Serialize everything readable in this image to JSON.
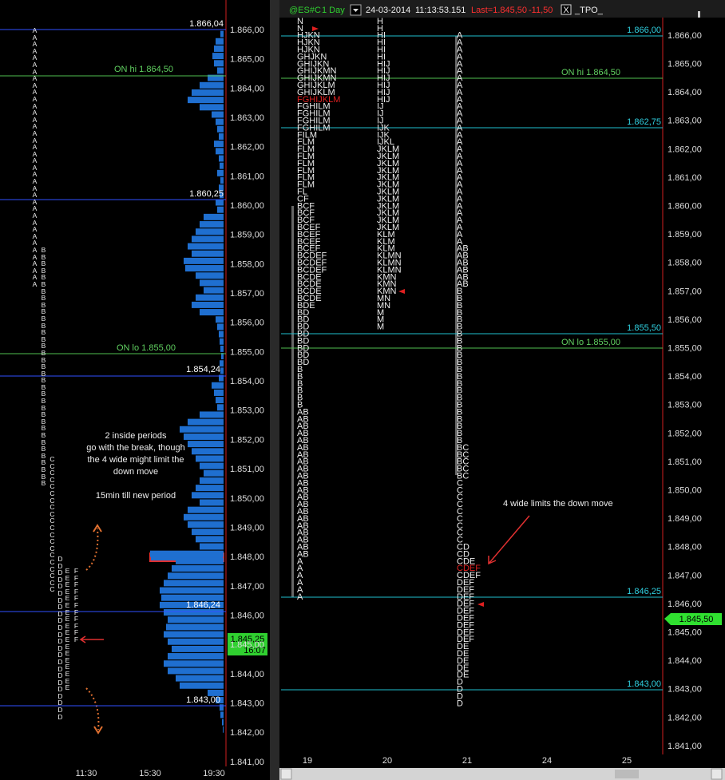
{
  "left_panel": {
    "price_labels": [
      "1.866,00",
      "1.865,00",
      "1.864,00",
      "1.863,00",
      "1.862,00",
      "1.861,00",
      "1.860,00",
      "1.859,00",
      "1.858,00",
      "1.857,00",
      "1.856,00",
      "1.855,00",
      "1.854,00",
      "1.853,00",
      "1.852,00",
      "1.851,00",
      "1.850,00",
      "1.849,00",
      "1.848,00",
      "1.847,00",
      "1.846,00",
      "1.845,00",
      "1.844,00",
      "1.843,00",
      "1.842,00",
      "1.841,00"
    ],
    "time_labels": [
      "11:30",
      "15:30",
      "19:30"
    ],
    "levels": [
      "1.866,04",
      "ON hi 1.864,50",
      "1.860,25",
      "ON lo 1.855,00",
      "1.854,24",
      "1.846,24",
      "1.843,00"
    ],
    "tpo_columns": [
      "AAAAAAAAAAAAAAAAAAAAAAAAAAAAAAAAAAAAAA",
      "BBBBBBBBBBBBBBBBBBBBBBBBBBBBBBBBBBB",
      "CCCCCCCCCCCCCCCCCCCC",
      "DDDDDDDDDDDDDDDDDDDDDDDD",
      "EEEEEEEEEEEEEEEEEE",
      "FFFFFFFFFFF"
    ],
    "volume_profile": [
      4,
      10,
      12,
      14,
      12,
      8,
      20,
      30,
      40,
      45,
      30,
      15,
      10,
      8,
      6,
      12,
      10,
      6,
      5,
      8,
      4,
      6,
      5,
      10,
      8,
      25,
      30,
      35,
      40,
      45,
      40,
      50,
      48,
      35,
      30,
      25,
      35,
      40,
      30,
      10,
      8,
      6,
      5,
      4,
      3,
      5,
      4,
      6,
      15,
      12,
      10,
      8,
      30,
      45,
      55,
      50,
      45,
      40,
      35,
      30,
      25,
      30,
      35,
      40,
      30,
      45,
      50,
      45,
      40,
      35,
      30,
      92,
      60,
      65,
      70,
      75,
      80,
      78,
      80,
      75,
      70,
      72,
      75,
      70,
      65,
      70,
      75,
      70,
      60,
      55,
      20,
      10,
      5,
      4,
      2,
      1
    ],
    "last_price": "1.845,25",
    "countdown": "16:07",
    "annotations": [
      "2 inside periods",
      "go with the break, though",
      "the 4 wide might limit the",
      "down move",
      "15min till new period"
    ]
  },
  "right_panel": {
    "header": {
      "symbol": "@ES#C",
      "period": "1 Day",
      "date": "24-03-2014",
      "time": "11:13:53.151",
      "last": "Last=1.845,50",
      "change": "-11,50",
      "checkbox": "X",
      "study": "_TPO_"
    },
    "price_labels": [
      "1.866,00",
      "1.865,00",
      "1.864,00",
      "1.863,00",
      "1.862,00",
      "1.861,00",
      "1.860,00",
      "1.859,00",
      "1.858,00",
      "1.857,00",
      "1.856,00",
      "1.855,00",
      "1.854,00",
      "1.853,00",
      "1.852,00",
      "1.851,00",
      "1.850,00",
      "1.849,00",
      "1.848,00",
      "1.847,00",
      "1.846,00",
      "1.845,00",
      "1.844,00",
      "1.843,00",
      "1.842,00",
      "1.841,00"
    ],
    "day_labels": [
      "19",
      "20",
      "21",
      "24",
      "25"
    ],
    "levels": [
      "1.866,00",
      "ON hi 1.864,50",
      "1.862,75",
      "1.855,50",
      "ON lo 1.855,00",
      "1.846,25",
      "1.843,00"
    ],
    "tpo_columns": [
      [
        "N",
        "N",
        "HJKN",
        "HJKN",
        "HJKN",
        "GHJKN",
        "GHIJKN",
        "GHIJKMN",
        "GHIJKMN",
        "GHIJKLM",
        "GHIJKLM",
        {
          "text": "FGHIJKLM",
          "color": "#e02020"
        },
        "FGHILM",
        "FGHILM",
        "FGHILM",
        "FGHILM",
        "FILM",
        "FLM",
        "FLM",
        "FLM",
        "FLM",
        "FLM",
        "FLM",
        "FLM",
        "FL",
        "CF",
        "BCF",
        "BCF",
        "BCF",
        "BCEF",
        "BCEF",
        "BCEF",
        "BCEF",
        "BCDEF",
        "BCDEF",
        "BCDEF",
        "BCDE",
        "BCDE",
        "BCDE",
        "BCDE",
        "BDE",
        "BD",
        "BD",
        "BD",
        "BD",
        "BD",
        "BD",
        "BD",
        "BD",
        "B",
        "B",
        "B",
        "B",
        "B",
        "B",
        "AB",
        "AB",
        "AB",
        "AB",
        "AB",
        "AB",
        "AB",
        "AB",
        "AB",
        "AB",
        "AB",
        "AB",
        "AB",
        "AB",
        "AB",
        "AB",
        "AB",
        "AB",
        "AB",
        "AB",
        "AB",
        "A",
        "A",
        "A",
        "A",
        "A",
        "A"
      ],
      [
        "H",
        "H",
        "HI",
        "HI",
        "HI",
        "HI",
        "HIJ",
        "HIJ",
        "HIJ",
        "HIJ",
        "HIJ",
        "HIJ",
        "IJ",
        "IJ",
        "IJ",
        "IJK",
        "IJK",
        "IJKL",
        "JKLM",
        "JKLM",
        "JKLM",
        "JKLM",
        "JKLM",
        "JKLM",
        "JKLM",
        "JKLM",
        "JKLM",
        "JKLM",
        "JKLM",
        "JKLM",
        "KLM",
        "KLM",
        "KLM",
        "KLMN",
        "KLMN",
        "KLMN",
        "KMN",
        "KMN",
        "KMN",
        "MN",
        "MN",
        "M",
        "M",
        "M"
      ],
      [
        null,
        null,
        "A",
        "A",
        "A",
        "A",
        "A",
        "A",
        "A",
        "A",
        "A",
        "A",
        "A",
        "A",
        "A",
        "A",
        "A",
        "A",
        "A",
        "A",
        "A",
        "A",
        "A",
        "A",
        "A",
        "A",
        "A",
        "A",
        "A",
        "A",
        "A",
        "A",
        "AB",
        "AB",
        "AB",
        "AB",
        "AB",
        "AB",
        "B",
        "B",
        "B",
        "B",
        "B",
        "B",
        "B",
        "B",
        "B",
        "B",
        "B",
        "B",
        "B",
        "B",
        "B",
        "B",
        "B",
        "B",
        "B",
        "B",
        "B",
        "B",
        "BC",
        "BC",
        "BC",
        "BC",
        "BC",
        "C",
        "C",
        "C",
        "C",
        "C",
        "C",
        "C",
        "C",
        "C",
        "CD",
        "CD",
        "CDE",
        {
          "text": "CDEF",
          "color": "#e02020"
        },
        "CDEF",
        "DEF",
        "DEF",
        "DEF",
        "DEF",
        "DEF",
        "DEF",
        "DEF",
        "DEF",
        "DEF",
        "DE",
        "DE",
        "DE",
        "DE",
        "DE",
        "D",
        "D",
        "D",
        "D"
      ]
    ],
    "last_price": "1.845,50",
    "annotation": "4 wide limits the down move"
  }
}
